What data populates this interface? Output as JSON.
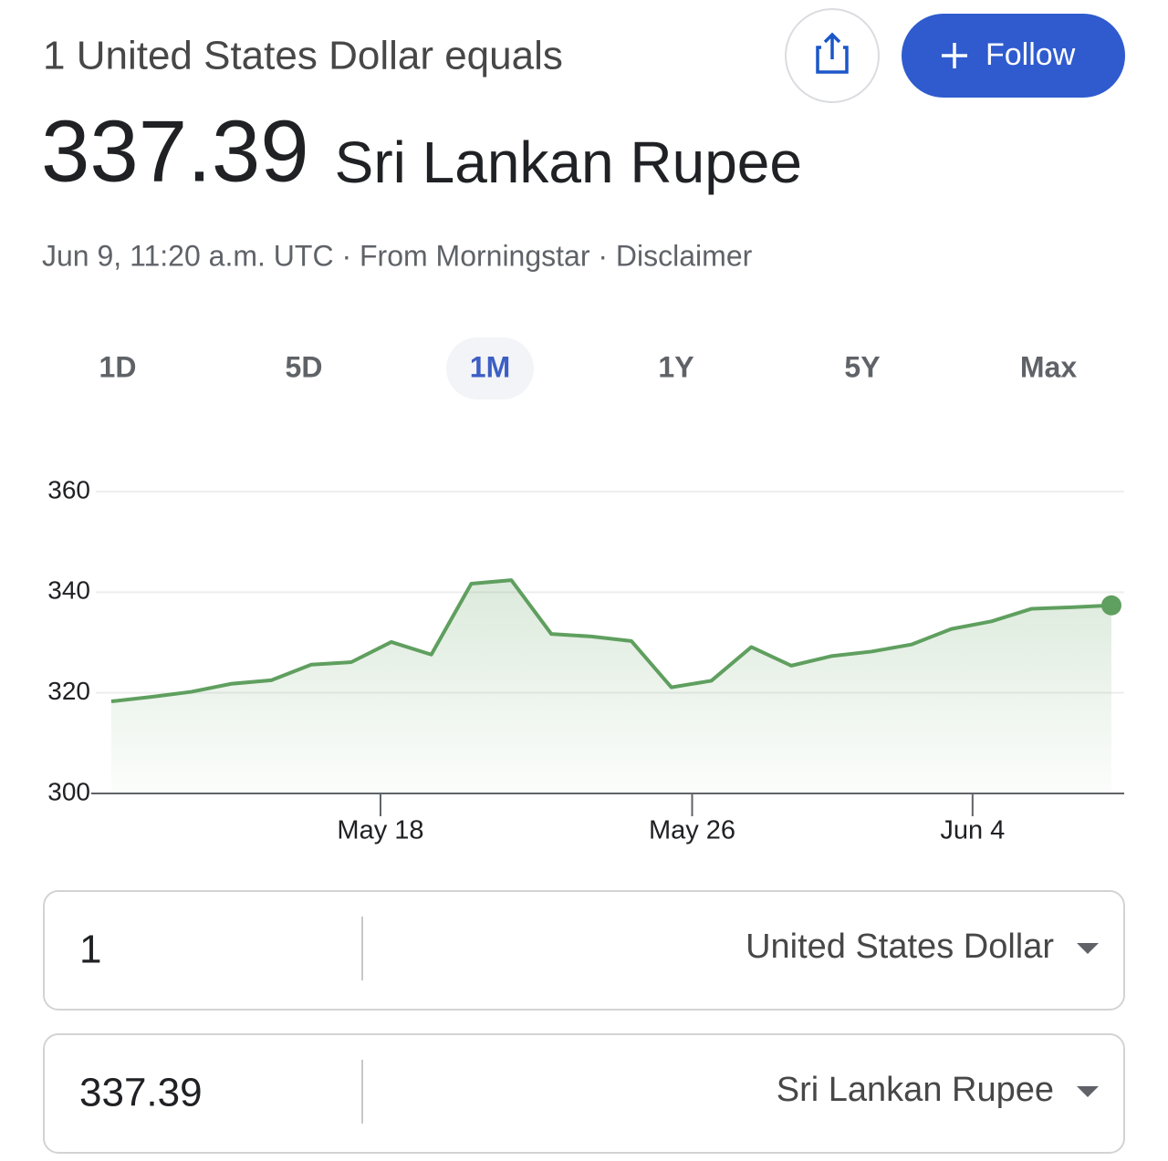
{
  "header": {
    "title": "1 United States Dollar equals",
    "rate": "337.39",
    "currency": "Sri Lankan Rupee",
    "meta": "Jun 9, 11:20 a.m. UTC · From Morningstar · Disclaimer",
    "follow": "Follow"
  },
  "tabs": [
    "1D",
    "5D",
    "1M",
    "1Y",
    "5Y",
    "Max"
  ],
  "selected_tab": 2,
  "chart_data": {
    "type": "line",
    "color": "#5f9f5f",
    "x": [
      0,
      1,
      2,
      3,
      4,
      5,
      6,
      7,
      8,
      9,
      10,
      11,
      12,
      13,
      14,
      15,
      16,
      17,
      18,
      19,
      20,
      21,
      22,
      23,
      24,
      25
    ],
    "values": [
      318.3,
      319.2,
      320.2,
      321.8,
      322.5,
      325.6,
      326.1,
      330.1,
      327.6,
      341.7,
      342.4,
      331.7,
      331.2,
      330.3,
      321.1,
      322.4,
      329.1,
      325.4,
      327.3,
      328.2,
      329.6,
      332.7,
      334.2,
      336.7,
      337.0,
      337.39
    ],
    "xlim": [
      -0.5,
      25.32
    ],
    "xticks": [
      {
        "value": 6.73,
        "label": "May 18"
      },
      {
        "value": 14.52,
        "label": "May 26"
      },
      {
        "value": 21.53,
        "label": "Jun 4"
      }
    ],
    "ylim": [
      300,
      360
    ],
    "yticks": [
      300,
      320,
      340,
      360
    ],
    "grid": true
  },
  "converter": [
    {
      "amount": "1",
      "currency": "United States Dollar"
    },
    {
      "amount": "337.39",
      "currency": "Sri Lankan Rupee"
    }
  ]
}
